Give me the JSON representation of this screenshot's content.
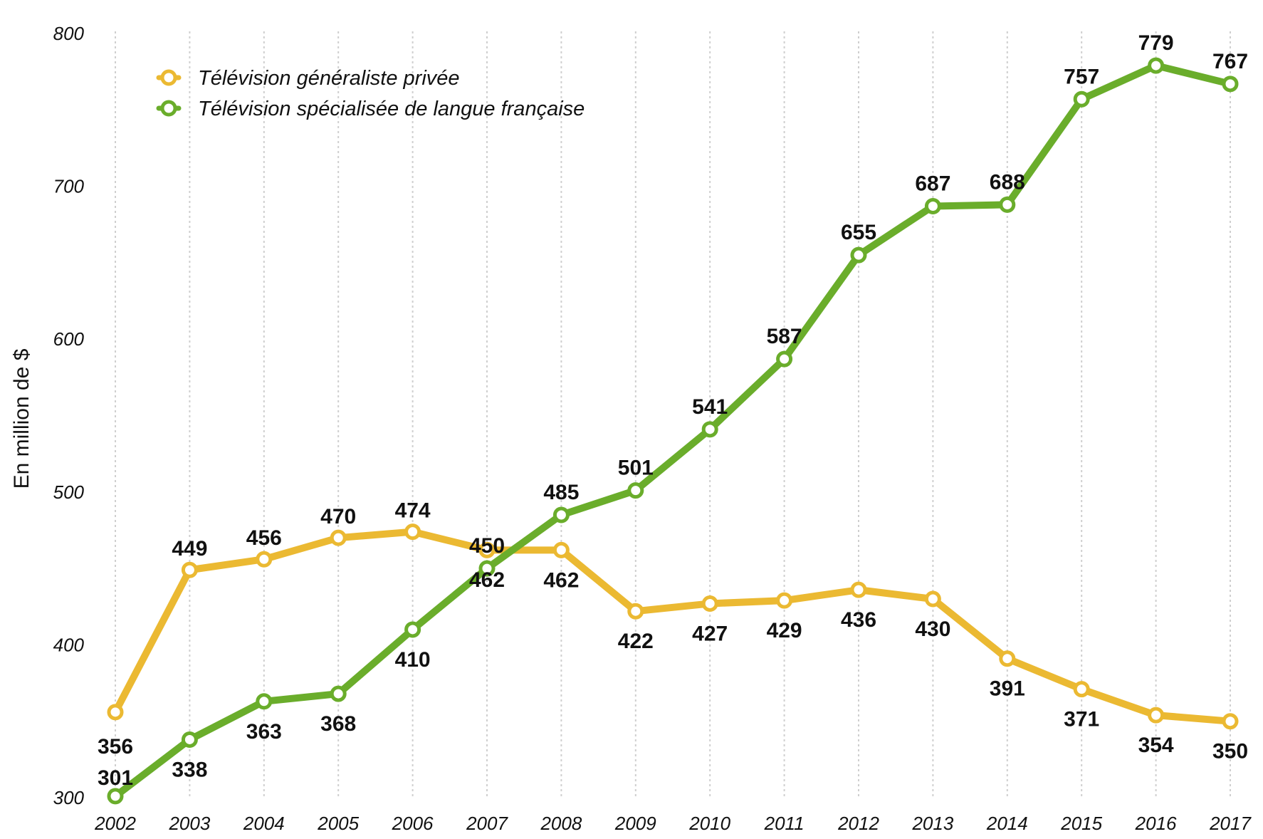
{
  "colors": {
    "generaliste": "#ebb932",
    "specialisee": "#6aad2b",
    "grid": "#cfcfcf"
  },
  "chart_data": {
    "type": "line",
    "title": "",
    "xlabel": "",
    "ylabel": "En million de $",
    "ylim": [
      300,
      800
    ],
    "yticks": [
      300,
      400,
      500,
      600,
      700,
      800
    ],
    "grid": "vertical",
    "legend_position": "top-left",
    "x": [
      "2002",
      "2003",
      "2004",
      "2005",
      "2006",
      "2007",
      "2008",
      "2009",
      "2010",
      "2011",
      "2012",
      "2013",
      "2014",
      "2015",
      "2016",
      "2017"
    ],
    "series": [
      {
        "name": "Télévision généraliste privée",
        "color": "#ebb932",
        "values": [
          356,
          449,
          456,
          470,
          474,
          462,
          462,
          422,
          427,
          429,
          436,
          430,
          391,
          371,
          354,
          350
        ]
      },
      {
        "name": "Télévision spécialisée de langue française",
        "color": "#6aad2b",
        "values": [
          301,
          338,
          363,
          368,
          410,
          450,
          485,
          501,
          541,
          587,
          655,
          687,
          688,
          757,
          779,
          767
        ]
      }
    ]
  }
}
